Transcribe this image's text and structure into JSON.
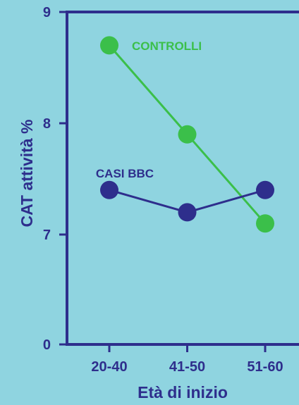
{
  "chart_data": {
    "type": "line",
    "xlabel": "Età di inizio",
    "ylabel": "CAT attività %",
    "categories": [
      "20-40",
      "41-50",
      "51-60"
    ],
    "y_ticks": [
      "0",
      "7",
      "8",
      "9"
    ],
    "ylim": [
      0,
      9
    ],
    "y_axis_break": "linear from 7 to 9, compressed gap between 0 and 7",
    "grid": false,
    "series": [
      {
        "name": "CONTROLLI",
        "values": [
          8.7,
          7.9,
          7.1
        ],
        "color": "#3bbf4a"
      },
      {
        "name": "CASI BBC",
        "values": [
          7.4,
          7.2,
          7.4
        ],
        "color": "#2e2e8c"
      }
    ],
    "axis_color": "#2e2e8c",
    "background": "#8fd4e0"
  }
}
